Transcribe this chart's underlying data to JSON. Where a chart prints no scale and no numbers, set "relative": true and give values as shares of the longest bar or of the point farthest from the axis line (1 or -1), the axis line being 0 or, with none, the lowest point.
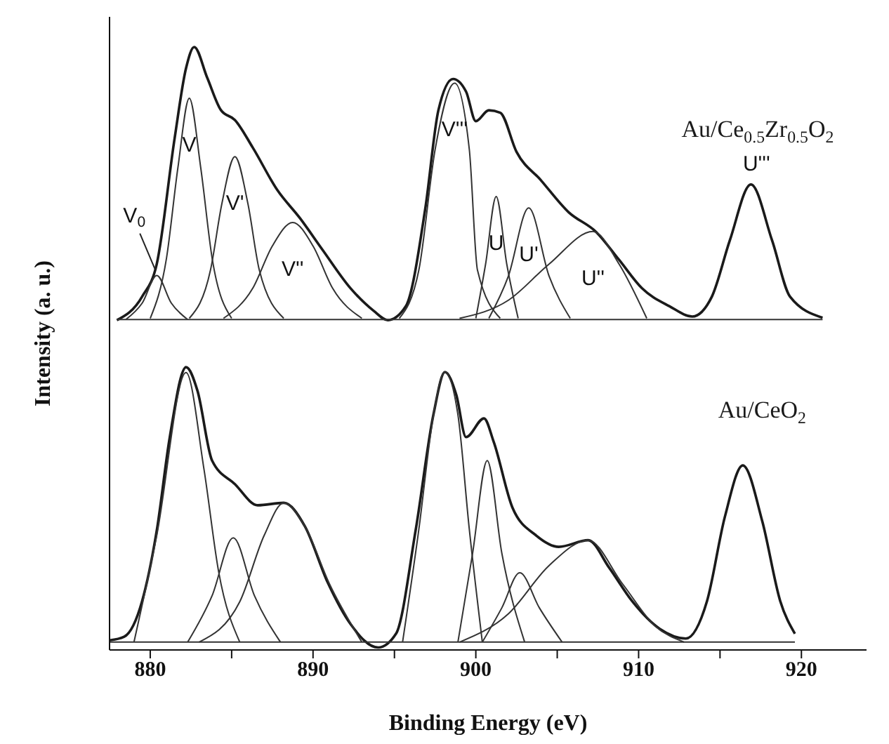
{
  "chart_data": {
    "type": "line",
    "relative": true,
    "xlabel": "Binding Energy (eV)",
    "ylabel": "Intensity (a. u.)",
    "xlim": [
      877.5,
      924
    ],
    "xticks": [
      880,
      {
        "value": 885,
        "label": null
      },
      890,
      {
        "value": 895,
        "label": null
      },
      900,
      {
        "value": 905,
        "label": null
      },
      910,
      {
        "value": 915,
        "label": null
      },
      920
    ],
    "annotations": [
      {
        "text": "V$_{0}$",
        "x": 880.4,
        "y": 0.621
      },
      {
        "text": "V",
        "x": 882.4,
        "y": 0.915
      },
      {
        "text": "V'",
        "x": 885.2,
        "y": 0.818
      },
      {
        "text": "V''",
        "x": 888.75,
        "y": 0.709
      },
      {
        "text": "V'''",
        "x": 898.7,
        "y": 0.94
      },
      {
        "text": "U",
        "x": 901.25,
        "y": 0.752
      },
      {
        "text": "U'",
        "x": 903.25,
        "y": 0.733
      },
      {
        "text": "U''",
        "x": 907.2,
        "y": 0.694
      },
      {
        "text": "U'''",
        "x": 916.9,
        "y": 0.772
      }
    ],
    "series": [
      {
        "name": "Au/Ce$_{0.5}$Zr$_{0.5}$O$_{2}$",
        "color": "#1a1a1a",
        "x": [
          877.95,
          879.5,
          880.4,
          881.5,
          882.2,
          882.7,
          883.5,
          884.35,
          885.2,
          886.3,
          887.8,
          889.2,
          890.6,
          892.3,
          893.7,
          894.6,
          895.7,
          896.9,
          897.7,
          898.6,
          899.4,
          900.0,
          900.8,
          901.5,
          902.5,
          904.0,
          905.7,
          907.4,
          908.8,
          910.2,
          911.9,
          913.3,
          914.5,
          915.6,
          916.9,
          918.2,
          919.3,
          921.3
        ],
        "values": [
          0.547,
          0.586,
          0.64,
          0.849,
          0.965,
          1,
          0.949,
          0.895,
          0.879,
          0.833,
          0.763,
          0.716,
          0.663,
          0.6,
          0.563,
          0.547,
          0.57,
          0.733,
          0.895,
          0.947,
          0.926,
          0.877,
          0.895,
          0.891,
          0.826,
          0.779,
          0.726,
          0.693,
          0.647,
          0.6,
          0.57,
          0.553,
          0.586,
          0.679,
          0.772,
          0.679,
          0.586,
          0.551
        ]
      },
      {
        "color": "#333333",
        "x": [
          877.95,
          921.3
        ],
        "values": [
          0.548,
          0.548
        ]
      },
      {
        "color": "#333333",
        "x": [
          878.5,
          879.5,
          880.4,
          881.3,
          882.3
        ],
        "values": [
          0.548,
          0.575,
          0.621,
          0.575,
          0.548
        ]
      },
      {
        "color": "#333333",
        "x": [
          880.0,
          881.0,
          881.7,
          882.4,
          883.1,
          883.8,
          885.0
        ],
        "values": [
          0.55,
          0.65,
          0.8,
          0.915,
          0.8,
          0.65,
          0.55
        ]
      },
      {
        "color": "#333333",
        "x": [
          882.4,
          883.7,
          884.4,
          885.2,
          886.0,
          886.7,
          888.2
        ],
        "values": [
          0.55,
          0.63,
          0.74,
          0.818,
          0.74,
          0.63,
          0.55
        ]
      },
      {
        "color": "#333333",
        "x": [
          884.5,
          886.3,
          887.5,
          888.75,
          890.0,
          891.2,
          893.0
        ],
        "values": [
          0.55,
          0.6,
          0.67,
          0.709,
          0.67,
          0.6,
          0.55
        ]
      },
      {
        "color": "#333333",
        "x": [
          895.3,
          896.5,
          897.5,
          898.7,
          899.6,
          900.1,
          901.5
        ],
        "values": [
          0.55,
          0.63,
          0.83,
          0.94,
          0.83,
          0.63,
          0.55
        ]
      },
      {
        "color": "#333333",
        "x": [
          900.0,
          900.6,
          901.25,
          901.9,
          902.6
        ],
        "values": [
          0.55,
          0.64,
          0.752,
          0.64,
          0.55
        ]
      },
      {
        "color": "#333333",
        "x": [
          900.8,
          902.0,
          903.25,
          904.5,
          905.8
        ],
        "values": [
          0.55,
          0.62,
          0.733,
          0.62,
          0.55
        ]
      },
      {
        "color": "#333333",
        "x": [
          899.0,
          902.0,
          904.5,
          907.2,
          908.8,
          910.5
        ],
        "values": [
          0.55,
          0.58,
          0.64,
          0.694,
          0.64,
          0.55
        ]
      },
      {
        "name": "Au/CeO$_{2}$",
        "color": "#1a1a1a",
        "x": [
          877.5,
          878.4,
          879.5,
          880.4,
          881.2,
          882.2,
          882.9,
          883.8,
          885.2,
          886.6,
          888.2,
          889.5,
          890.9,
          892.3,
          894.0,
          895.1,
          896.3,
          897.4,
          898.1,
          898.8,
          899.4,
          900.5,
          901.1,
          902.25,
          903.7,
          905.1,
          906.9,
          908.2,
          909.6,
          911.3,
          912.9,
          914.2,
          915.3,
          916.4,
          917.6,
          918.7,
          919.6
        ],
        "values": [
          0.016,
          0.022,
          0.081,
          0.198,
          0.353,
          0.469,
          0.43,
          0.314,
          0.275,
          0.24,
          0.244,
          0.205,
          0.112,
          0.043,
          0.004,
          0.027,
          0.198,
          0.391,
          0.461,
          0.423,
          0.353,
          0.384,
          0.345,
          0.236,
          0.19,
          0.171,
          0.182,
          0.136,
          0.081,
          0.035,
          0.019,
          0.081,
          0.221,
          0.306,
          0.213,
          0.081,
          0.027
        ]
      },
      {
        "color": "#333333",
        "x": [
          877.5,
          919.6
        ],
        "values": [
          0.013,
          0.013
        ]
      },
      {
        "color": "#333333",
        "x": [
          879.0,
          880.4,
          882.2,
          883.3,
          884.2,
          885.5
        ],
        "values": [
          0.013,
          0.19,
          0.46,
          0.3,
          0.13,
          0.013
        ]
      },
      {
        "color": "#333333",
        "x": [
          882.3,
          883.8,
          885.1,
          886.4,
          888.0
        ],
        "values": [
          0.013,
          0.09,
          0.186,
          0.09,
          0.013
        ]
      },
      {
        "color": "#333333",
        "x": [
          883.0,
          885.5,
          887.0,
          888.2,
          889.5,
          891.0,
          893.0
        ],
        "values": [
          0.013,
          0.08,
          0.19,
          0.244,
          0.205,
          0.11,
          0.013
        ]
      },
      {
        "color": "#333333",
        "x": [
          895.5,
          896.5,
          897.4,
          898.1,
          898.9,
          899.6,
          900.4
        ],
        "values": [
          0.013,
          0.2,
          0.39,
          0.461,
          0.39,
          0.2,
          0.013
        ]
      },
      {
        "color": "#333333",
        "x": [
          898.9,
          899.8,
          900.7,
          901.6,
          903.0
        ],
        "values": [
          0.013,
          0.16,
          0.314,
          0.16,
          0.013
        ]
      },
      {
        "color": "#333333",
        "x": [
          900.4,
          901.6,
          902.7,
          903.9,
          905.3
        ],
        "values": [
          0.013,
          0.07,
          0.128,
          0.07,
          0.013
        ]
      },
      {
        "color": "#333333",
        "x": [
          899.0,
          902.0,
          904.5,
          906.9,
          909.0,
          911.0,
          912.8
        ],
        "values": [
          0.013,
          0.06,
          0.14,
          0.182,
          0.11,
          0.04,
          0.013
        ]
      }
    ]
  }
}
